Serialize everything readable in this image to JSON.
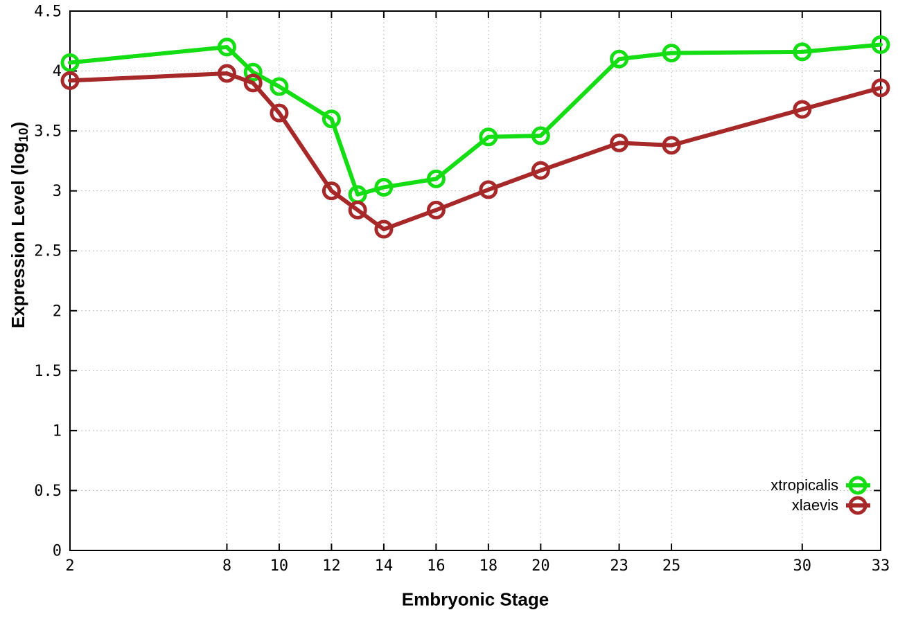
{
  "figure": {
    "xlabel": "Embryonic Stage",
    "ylabel_prefix": "Expression Level (log",
    "ylabel_sub": "10",
    "ylabel_suffix": ")"
  },
  "chart_data": {
    "type": "line",
    "title": "",
    "xlabel": "Embryonic Stage",
    "ylabel": "Expression Level (log₁₀)",
    "xlim": [
      2,
      33
    ],
    "ylim": [
      0,
      4.5
    ],
    "grid": true,
    "grid_style": "dotted",
    "legend_position": "bottom-right-inside",
    "background_color": "#ffffff",
    "axis_color": "#000000",
    "grid_color": "#a9a9a9",
    "x_ticks": [
      2,
      8,
      10,
      12,
      14,
      16,
      18,
      20,
      23,
      25,
      30,
      33
    ],
    "y_tick_labels": [
      "0",
      "0.5",
      "1",
      "1.5",
      "2",
      "2.5",
      "3",
      "3.5",
      "4",
      "4.5"
    ],
    "x": [
      2,
      8,
      9,
      10,
      12,
      13,
      14,
      16,
      18,
      20,
      23,
      25,
      30,
      33
    ],
    "series": [
      {
        "name": "xtropicalis",
        "color": "#14dd14",
        "marker": "open-circle",
        "values": [
          4.07,
          4.2,
          3.99,
          3.87,
          3.6,
          2.97,
          3.03,
          3.1,
          3.45,
          3.46,
          4.1,
          4.15,
          4.16,
          4.22
        ]
      },
      {
        "name": "xlaevis",
        "color": "#a62828",
        "marker": "open-circle",
        "values": [
          3.92,
          3.98,
          3.9,
          3.65,
          3.0,
          2.84,
          2.68,
          2.84,
          3.01,
          3.17,
          3.4,
          3.38,
          3.68,
          3.86
        ]
      }
    ]
  }
}
